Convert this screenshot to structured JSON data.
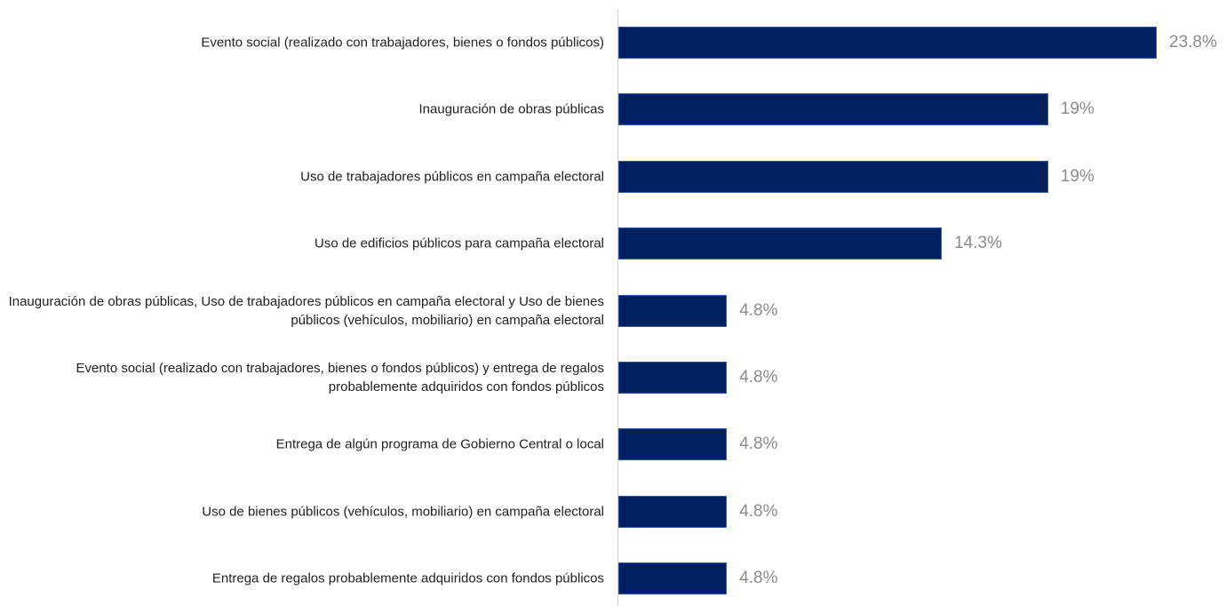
{
  "chart_data": {
    "type": "bar",
    "orientation": "horizontal",
    "categories": [
      "Evento social (realizado con trabajadores, bienes o fondos públicos)",
      "Inauguración de obras públicas",
      "Uso de trabajadores públicos en campaña electoral",
      "Uso de edificios públicos para campaña electoral",
      "Inauguración de obras públicas, Uso de trabajadores públicos en campaña electoral y Uso de bienes públicos (vehículos, mobiliario) en campaña electoral",
      "Evento social (realizado con trabajadores, bienes o fondos públicos) y entrega de regalos probablemente adquiridos con fondos públicos",
      "Entrega de algún programa de Gobierno Central o local",
      "Uso de bienes públicos (vehículos, mobiliario) en campaña electoral",
      "Entrega de regalos probablemente adquiridos con fondos públicos"
    ],
    "values": [
      23.8,
      19,
      19,
      14.3,
      4.8,
      4.8,
      4.8,
      4.8,
      4.8
    ],
    "value_labels": [
      "23.8%",
      "19%",
      "19%",
      "14.3%",
      "4.8%",
      "4.8%",
      "4.8%",
      "4.8%",
      "4.8%"
    ],
    "color": "#002060"
  }
}
